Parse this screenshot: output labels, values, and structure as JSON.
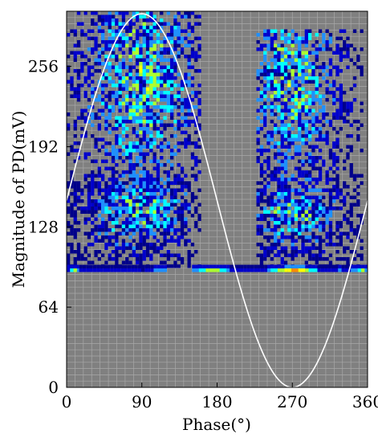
{
  "chart_data": {
    "type": "heatmap",
    "title": "",
    "xlabel": "Phase(°)",
    "ylabel": "Magnitude of PD(mV)",
    "xlim": [
      0,
      360
    ],
    "ylim": [
      0,
      300
    ],
    "xticks": [
      0,
      90,
      180,
      270,
      360
    ],
    "yticks": [
      0,
      64,
      128,
      192,
      256
    ],
    "x_tick_labels": [
      "0",
      "90",
      "180",
      "270",
      "360"
    ],
    "y_tick_labels": [
      "0",
      "64",
      "128",
      "192",
      "256"
    ],
    "grid": true,
    "background_color": "#808080",
    "colormap": [
      "#00008b",
      "#0000cd",
      "#1e90ff",
      "#00ffff",
      "#adff2f",
      "#ffff00",
      "#ff8c00",
      "#ff0000",
      "#8b0000"
    ],
    "reference_curve": {
      "type": "sine",
      "color": "#ffffff",
      "amplitude_mV": 149,
      "offset_mV": 149,
      "x": [
        0,
        30,
        60,
        90,
        120,
        150,
        180,
        210,
        240,
        270,
        300,
        330,
        360
      ],
      "y": [
        149,
        224,
        278,
        298,
        278,
        224,
        149,
        74,
        20,
        0,
        20,
        74,
        149
      ]
    },
    "clusters": [
      {
        "x_range": [
          0,
          160
        ],
        "y_range": [
          95,
          300
        ],
        "peak_x": 90,
        "peak_y": 245,
        "level": 0.6
      },
      {
        "x_range": [
          0,
          150
        ],
        "y_range": [
          95,
          170
        ],
        "peak_x": 90,
        "peak_y": 140,
        "level": 0.55
      },
      {
        "x_range": [
          225,
          355
        ],
        "y_range": [
          95,
          285
        ],
        "peak_x": 270,
        "peak_y": 245,
        "level": 0.6
      },
      {
        "x_range": [
          225,
          355
        ],
        "y_range": [
          95,
          170
        ],
        "peak_x": 270,
        "peak_y": 140,
        "level": 0.55
      }
    ],
    "baseline_band": {
      "y": 92,
      "segments": [
        {
          "x_range": [
            0,
            15
          ],
          "level": 0.45
        },
        {
          "x_range": [
            15,
            100
          ],
          "level": 0.1
        },
        {
          "x_range": [
            100,
            120
          ],
          "level": 0.25
        },
        {
          "x_range": [
            150,
            195
          ],
          "level": 0.5
        },
        {
          "x_range": [
            195,
            240
          ],
          "level": 0.1
        },
        {
          "x_range": [
            240,
            300
          ],
          "level": 0.7
        },
        {
          "x_range": [
            300,
            340
          ],
          "level": 0.15
        },
        {
          "x_range": [
            340,
            360
          ],
          "level": 0.45
        }
      ]
    }
  }
}
